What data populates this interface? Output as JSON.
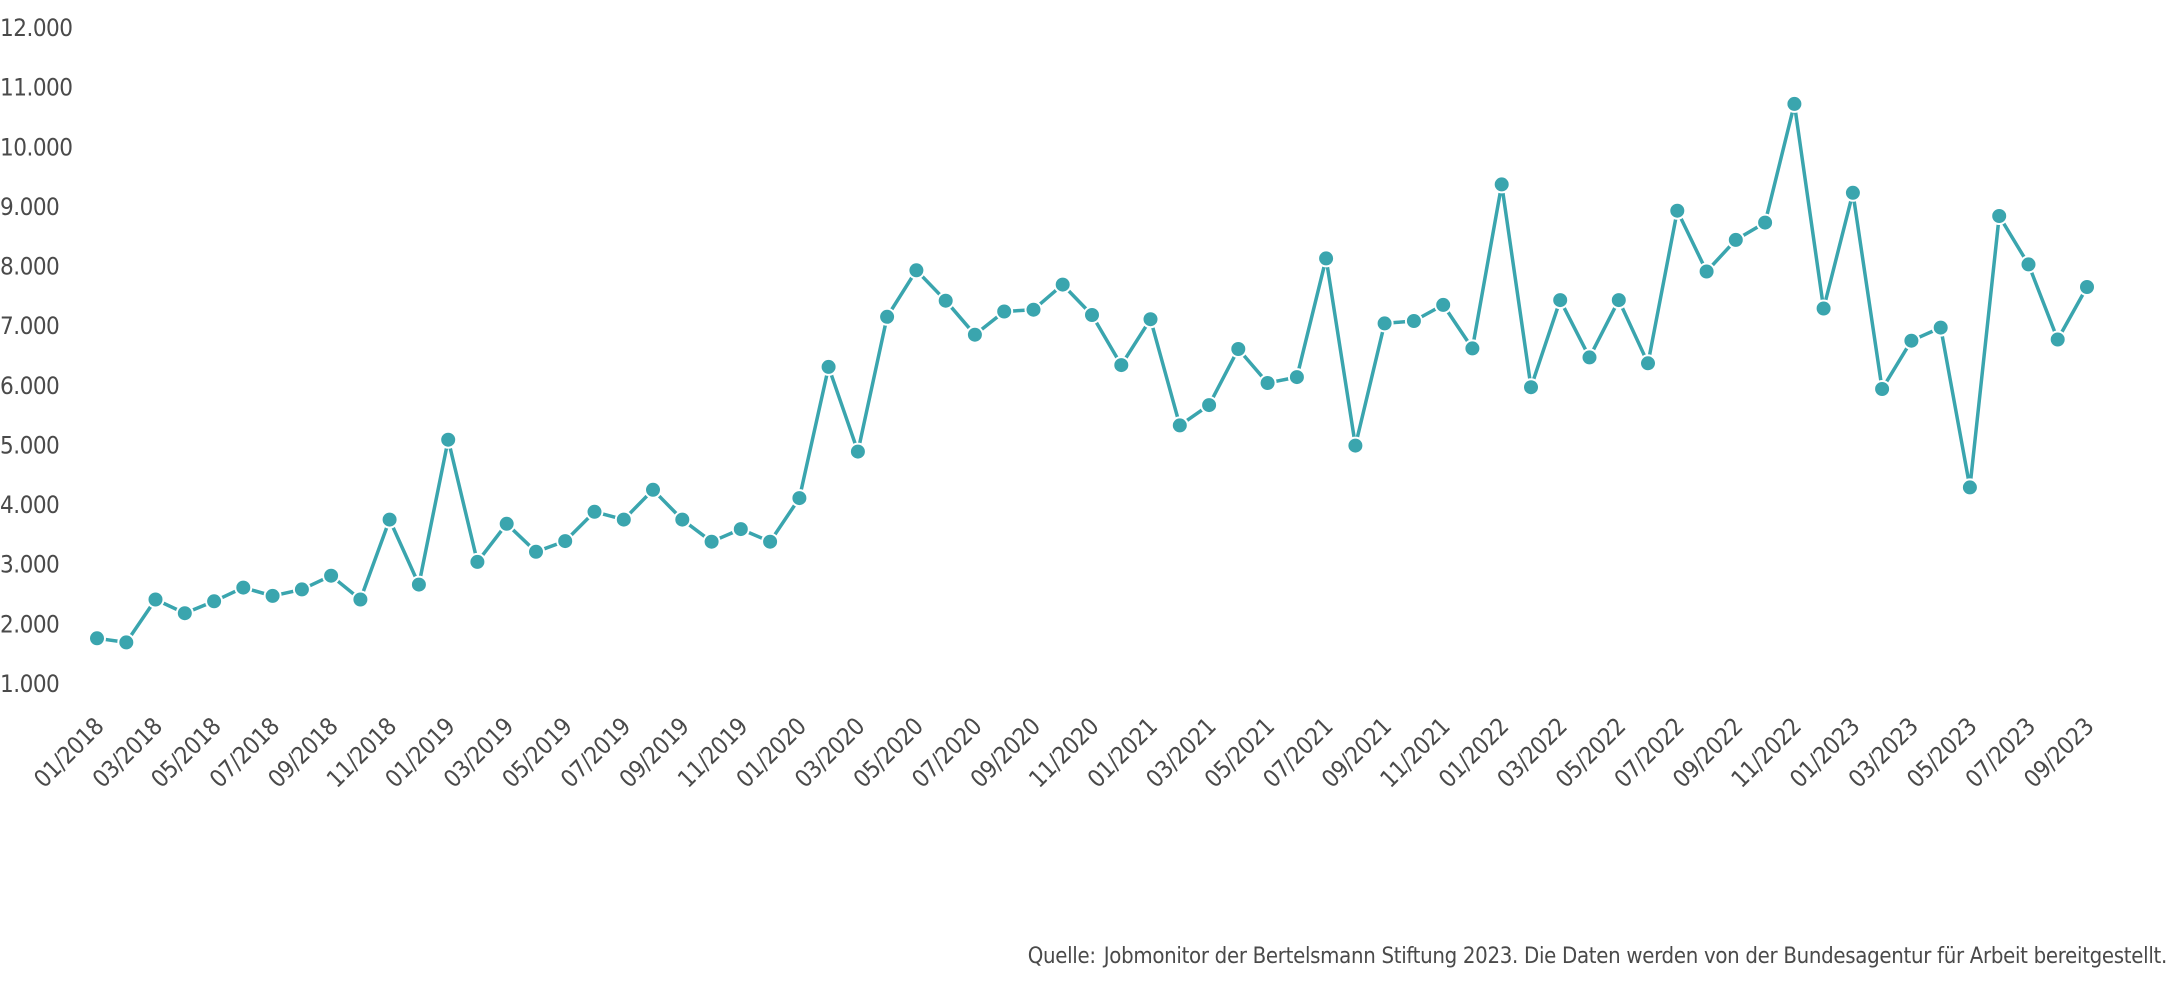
{
  "colors": {
    "series": "#3aa5ae",
    "text": "#4a4a4a"
  },
  "chart_data": {
    "type": "line",
    "title": "",
    "xlabel": "",
    "ylabel": "",
    "ylim": [
      1000,
      12000
    ],
    "y_ticks": [
      1000,
      2000,
      3000,
      4000,
      5000,
      6000,
      7000,
      8000,
      9000,
      10000,
      11000,
      12000
    ],
    "y_tick_labels": [
      "1.000",
      "2.000",
      "3.000",
      "4.000",
      "5.000",
      "6.000",
      "7.000",
      "8.000",
      "9.000",
      "10.000",
      "11.000",
      "12.000"
    ],
    "grid": false,
    "legend": "none",
    "x": [
      "01/2018",
      "02/2018",
      "03/2018",
      "04/2018",
      "05/2018",
      "06/2018",
      "07/2018",
      "08/2018",
      "09/2018",
      "10/2018",
      "11/2018",
      "12/2018",
      "01/2019",
      "02/2019",
      "03/2019",
      "04/2019",
      "05/2019",
      "06/2019",
      "07/2019",
      "08/2019",
      "09/2019",
      "10/2019",
      "11/2019",
      "12/2019",
      "01/2020",
      "02/2020",
      "03/2020",
      "04/2020",
      "05/2020",
      "06/2020",
      "07/2020",
      "08/2020",
      "09/2020",
      "10/2020",
      "11/2020",
      "12/2020",
      "01/2021",
      "02/2021",
      "03/2021",
      "04/2021",
      "05/2021",
      "06/2021",
      "07/2021",
      "08/2021",
      "09/2021",
      "10/2021",
      "11/2021",
      "12/2021",
      "01/2022",
      "02/2022",
      "03/2022",
      "04/2022",
      "05/2022",
      "06/2022",
      "07/2022",
      "08/2022",
      "09/2022",
      "10/2022",
      "11/2022",
      "12/2022",
      "01/2023",
      "02/2023",
      "03/2023",
      "04/2023",
      "05/2023",
      "06/2023",
      "07/2023",
      "08/2023",
      "09/2023"
    ],
    "x_tick_labels": [
      "01/2018",
      "03/2018",
      "05/2018",
      "07/2018",
      "09/2018",
      "11/2018",
      "01/2019",
      "03/2019",
      "05/2019",
      "07/2019",
      "09/2019",
      "11/2019",
      "01/2020",
      "03/2020",
      "05/2020",
      "07/2020",
      "09/2020",
      "11/2020",
      "01/2021",
      "03/2021",
      "05/2021",
      "07/2021",
      "09/2021",
      "11/2021",
      "01/2022",
      "03/2022",
      "05/2022",
      "07/2022",
      "09/2022",
      "11/2022",
      "01/2023",
      "03/2023",
      "05/2023",
      "07/2023",
      "09/2023"
    ],
    "series": [
      {
        "values": [
          1750,
          1680,
          2400,
          2170,
          2370,
          2600,
          2460,
          2570,
          2800,
          2400,
          3740,
          2650,
          5080,
          3030,
          3670,
          3200,
          3380,
          3870,
          3740,
          4240,
          3740,
          3370,
          3580,
          3370,
          4100,
          6300,
          4880,
          7140,
          7920,
          7410,
          6840,
          7230,
          7260,
          7680,
          7170,
          6330,
          7100,
          5320,
          5660,
          6600,
          6030,
          6130,
          8120,
          4980,
          7030,
          7070,
          7340,
          6610,
          9360,
          5960,
          7420,
          6460,
          7420,
          6360,
          8920,
          7900,
          8430,
          8720,
          10710,
          7280,
          9220,
          5930,
          6740,
          6960,
          4280,
          8830,
          8020,
          6760,
          7640
        ]
      }
    ]
  },
  "source": {
    "prefix": "Quelle:",
    "text": "Jobmonitor der Bertelsmann Stiftung 2023. Die Daten werden von der Bundesagentur für Arbeit bereitgestellt."
  }
}
